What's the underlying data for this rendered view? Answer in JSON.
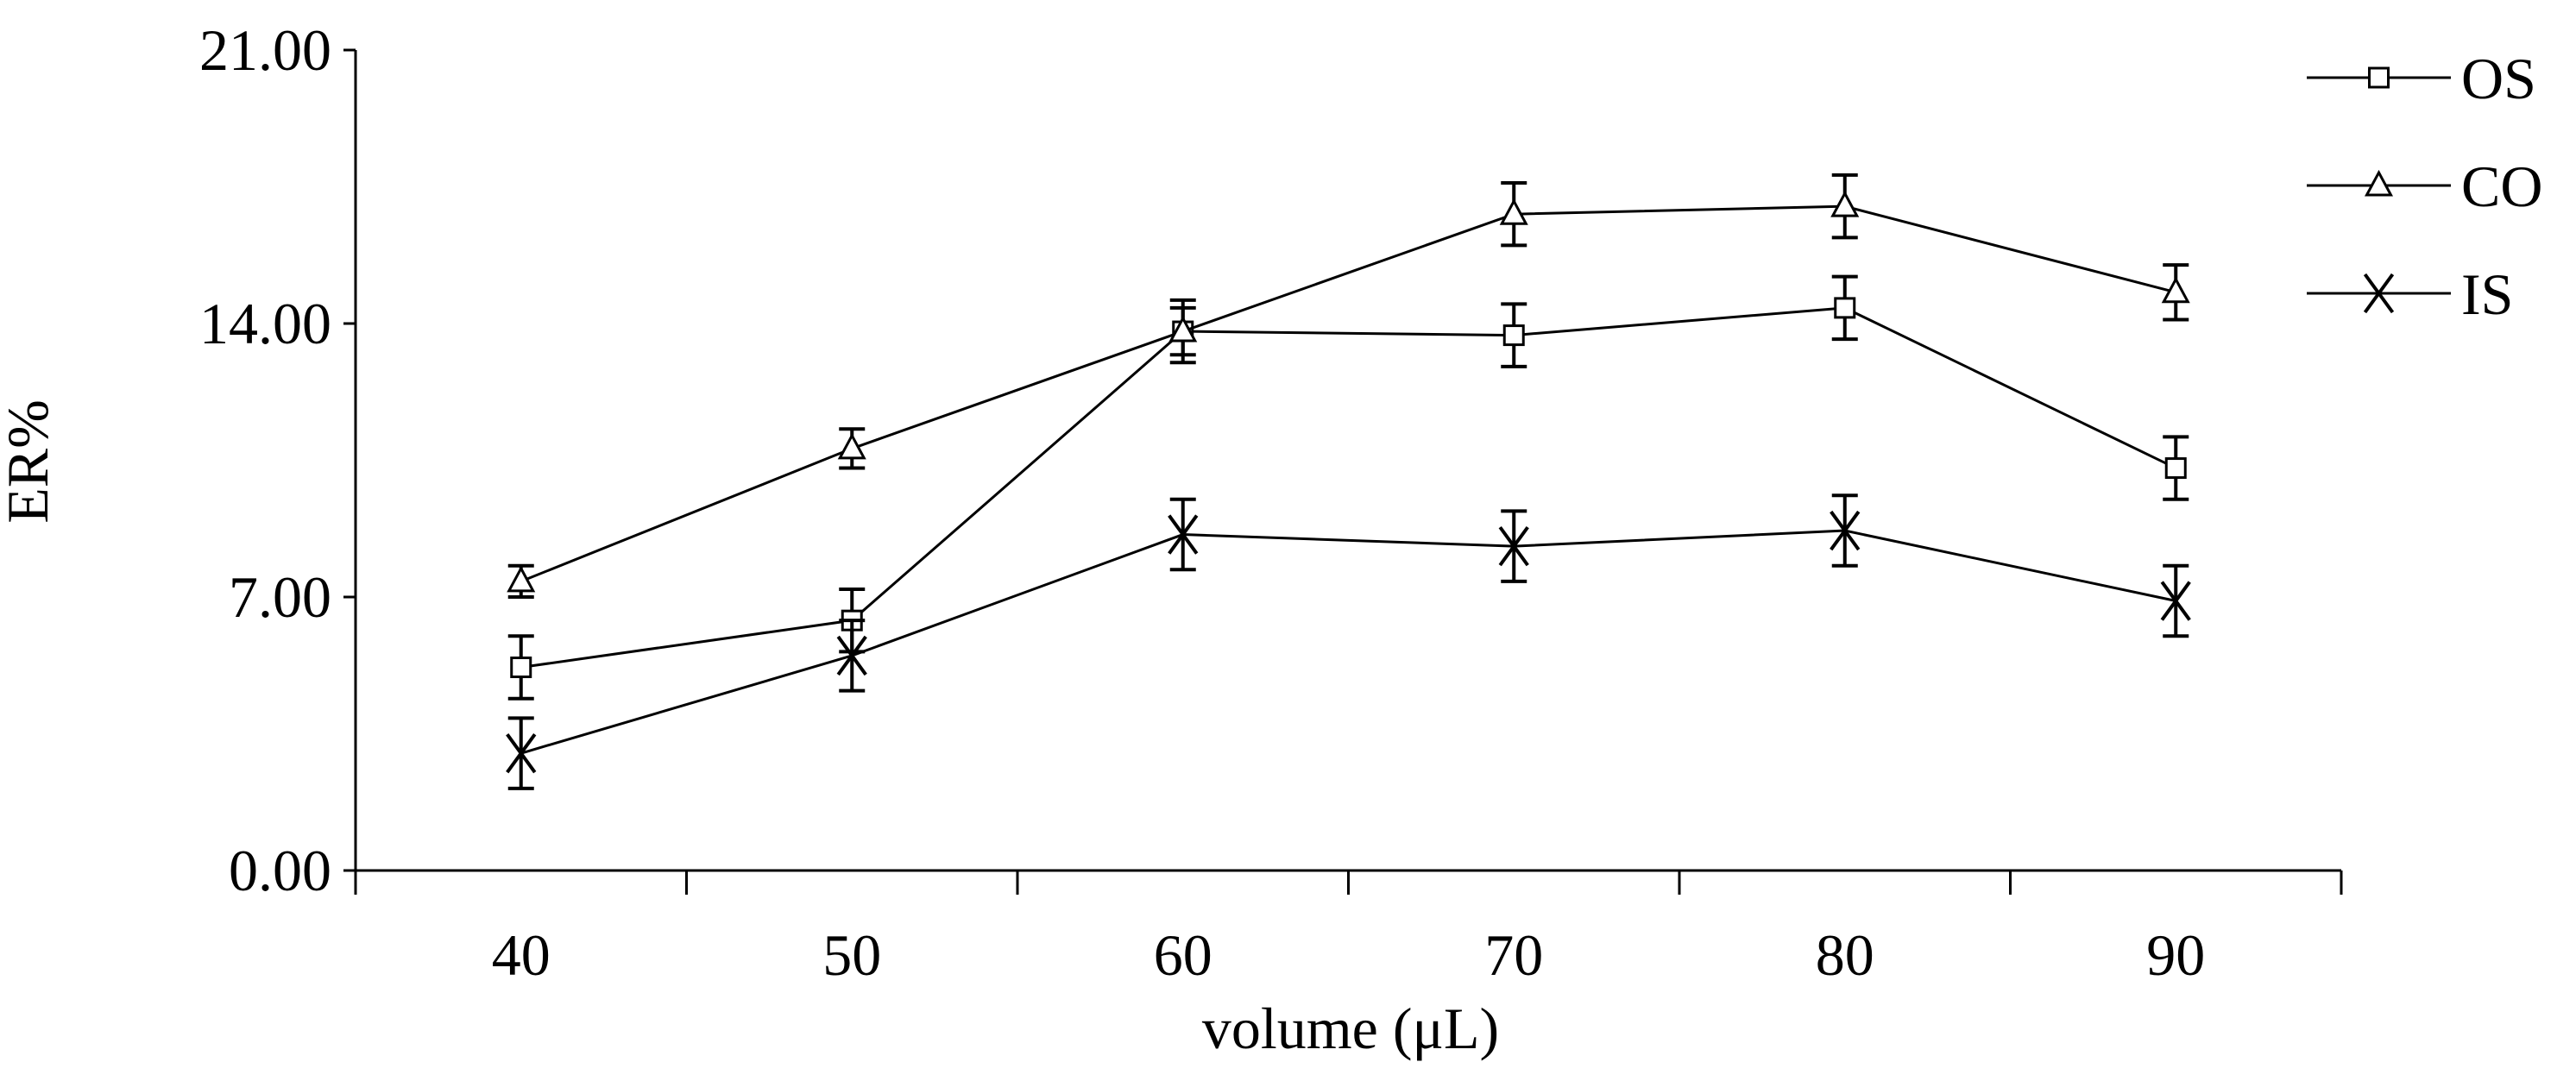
{
  "chart_data": {
    "type": "line",
    "title": "",
    "xlabel": "volume (μL)",
    "ylabel": "ER%",
    "categories": [
      "40",
      "50",
      "60",
      "70",
      "80",
      "90"
    ],
    "y_tick_labels": [
      "0.00",
      "7.00",
      "14.00",
      "21.00"
    ],
    "y_ticks": [
      0,
      7,
      14,
      21
    ],
    "ylim": [
      0,
      21
    ],
    "grid": false,
    "legend_position": "top-right",
    "series": [
      {
        "name": "OS",
        "marker": "square",
        "values": [
          5.2,
          6.4,
          13.8,
          13.7,
          14.4,
          10.3
        ],
        "errors": [
          0.8,
          0.8,
          0.8,
          0.8,
          0.8,
          0.8
        ]
      },
      {
        "name": "CO",
        "marker": "triangle",
        "values": [
          7.4,
          10.8,
          13.8,
          16.8,
          17.0,
          14.8
        ],
        "errors": [
          0.4,
          0.5,
          0.6,
          0.8,
          0.8,
          0.7
        ]
      },
      {
        "name": "IS",
        "marker": "x",
        "values": [
          3.0,
          5.5,
          8.6,
          8.3,
          8.7,
          6.9
        ],
        "errors": [
          0.9,
          0.9,
          0.9,
          0.9,
          0.9,
          0.9
        ]
      }
    ],
    "colors": {
      "line": "#000000",
      "background": "#ffffff"
    }
  }
}
